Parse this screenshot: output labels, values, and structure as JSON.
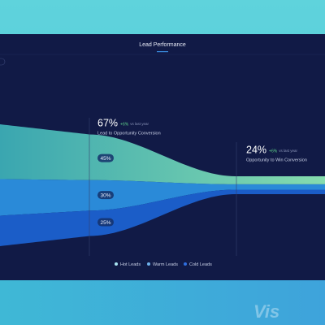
{
  "header": {
    "title": "Lead Performance"
  },
  "stages": [
    {
      "rate": "67%",
      "change": "+6%",
      "note": "vs last year",
      "name": "Lead to Opportunity Conversion"
    },
    {
      "rate": "24%",
      "change": "+6%",
      "note": "vs last year",
      "name": "Opportunity to Win Conversion"
    }
  ],
  "chart_data": {
    "type": "funnel",
    "series": [
      {
        "name": "Hot Leads",
        "color": "#4dbfae",
        "values": [
          45
        ],
        "value_labels": [
          "45%"
        ]
      },
      {
        "name": "Warm Leads",
        "color": "#2a8ad8",
        "values": [
          30
        ],
        "value_labels": [
          "30%"
        ]
      },
      {
        "name": "Cold Leads",
        "color": "#1b5dc8",
        "values": [
          25
        ],
        "value_labels": [
          "25%"
        ]
      }
    ]
  },
  "watermark": "Vis"
}
